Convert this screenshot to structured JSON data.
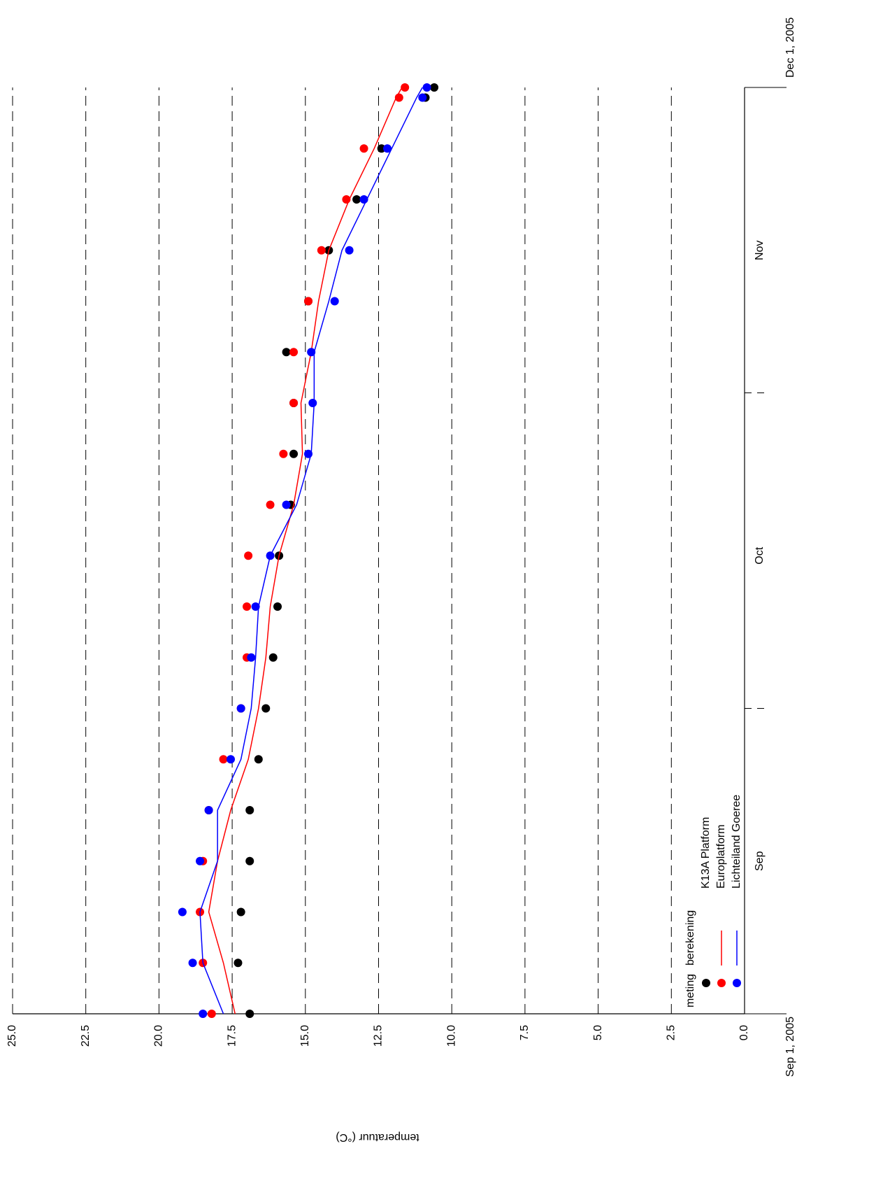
{
  "chart_data": {
    "type": "scatter-line",
    "y_label": "temperatuur (°C)",
    "ylim": [
      0,
      25
    ],
    "yticks": [
      {
        "value": 0,
        "label": "0.0"
      },
      {
        "value": 2.5,
        "label": "2.5"
      },
      {
        "value": 5,
        "label": "5.0"
      },
      {
        "value": 7.5,
        "label": "7.5"
      },
      {
        "value": 10,
        "label": "10.0"
      },
      {
        "value": 12.5,
        "label": "12.5"
      },
      {
        "value": 15,
        "label": "15.0"
      },
      {
        "value": 17.5,
        "label": "17.5"
      },
      {
        "value": 20,
        "label": "20.0"
      },
      {
        "value": 22.5,
        "label": "22.5"
      },
      {
        "value": 25,
        "label": "25.0"
      }
    ],
    "xlim": [
      "2005-09-01",
      "2005-12-01"
    ],
    "xticks": [
      {
        "value": "2005-09-01",
        "label": "Sep 1, 2005"
      },
      {
        "value": "2005-12-01",
        "label": "Dec 1, 2005"
      }
    ],
    "x_minor_ticks": [
      "2005-10-01",
      "2005-11-01"
    ],
    "month_labels": [
      {
        "value": "2005-09-16",
        "label": "Sep"
      },
      {
        "value": "2005-10-16",
        "label": "Oct"
      },
      {
        "value": "2005-11-15",
        "label": "Nov"
      }
    ],
    "grid": true,
    "legend": {
      "meting": "meting",
      "berekening": "berekening",
      "position": "lower left"
    },
    "x": [
      "2005-09-01",
      "2005-09-06",
      "2005-09-11",
      "2005-09-16",
      "2005-09-21",
      "2005-09-26",
      "2005-10-01",
      "2005-10-06",
      "2005-10-11",
      "2005-10-16",
      "2005-10-21",
      "2005-10-26",
      "2005-10-31",
      "2005-11-05",
      "2005-11-10",
      "2005-11-15",
      "2005-11-20",
      "2005-11-25",
      "2005-11-30",
      "2005-12-01"
    ],
    "series": [
      {
        "name": "K13A Platform",
        "color": "#000000",
        "meting": [
          16.9,
          17.3,
          17.2,
          16.9,
          16.9,
          16.6,
          16.35,
          16.1,
          15.95,
          15.9,
          15.5,
          15.4,
          15.4,
          15.65,
          14.9,
          14.2,
          13.25,
          12.4,
          10.9,
          10.6
        ],
        "berekening": null
      },
      {
        "name": "Europlatform",
        "color": "#ff0000",
        "meting": [
          18.2,
          18.5,
          18.6,
          18.5,
          18.3,
          17.8,
          17.2,
          17.0,
          17.0,
          16.95,
          16.2,
          15.75,
          15.4,
          15.4,
          14.9,
          14.45,
          13.6,
          13.0,
          11.8,
          11.6
        ],
        "berekening": [
          17.4,
          17.8,
          18.3,
          18.0,
          17.55,
          16.95,
          16.6,
          16.35,
          16.2,
          15.9,
          15.4,
          15.1,
          15.15,
          14.8,
          14.55,
          14.2,
          13.5,
          12.65,
          11.9,
          11.7
        ]
      },
      {
        "name": "Lichteiland Goeree",
        "color": "#0000ff",
        "meting": [
          18.5,
          18.85,
          19.2,
          18.6,
          18.3,
          17.55,
          17.2,
          16.85,
          16.7,
          16.2,
          15.65,
          14.9,
          14.75,
          14.8,
          14.0,
          13.5,
          13.0,
          12.2,
          11.0,
          10.85
        ],
        "berekening": [
          17.8,
          18.5,
          18.6,
          18.0,
          18.0,
          17.2,
          16.85,
          16.7,
          16.6,
          16.2,
          15.3,
          14.8,
          14.7,
          14.7,
          14.2,
          13.75,
          12.9,
          12.05,
          11.2,
          11.0
        ]
      }
    ]
  }
}
